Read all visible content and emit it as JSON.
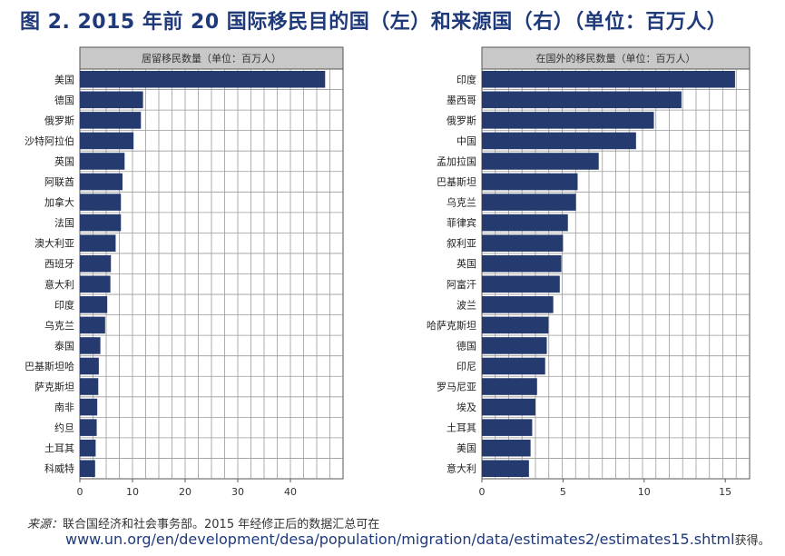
{
  "title": "图 2. 2015 年前 20 国际移民目的国（左）和来源国（右）（单位：百万人）",
  "chart_data": [
    {
      "type": "bar",
      "orientation": "horizontal",
      "title": "居留移民数量（单位：百万人）",
      "categories": [
        "美国",
        "德国",
        "俄罗斯",
        "沙特阿拉伯",
        "英国",
        "阿联酋",
        "加拿大",
        "法国",
        "澳大利亚",
        "西班牙",
        "意大利",
        "印度",
        "乌克兰",
        "泰国",
        "巴基斯坦哈",
        "萨克斯坦",
        "南非",
        "约旦",
        "土耳其",
        "科威特"
      ],
      "values": [
        46.6,
        12.0,
        11.6,
        10.2,
        8.5,
        8.1,
        7.8,
        7.8,
        6.8,
        5.9,
        5.8,
        5.2,
        4.8,
        3.9,
        3.6,
        3.5,
        3.3,
        3.2,
        3.0,
        2.9
      ],
      "xlim": [
        0,
        50
      ],
      "xticks": [
        0,
        10,
        20,
        30,
        40
      ],
      "grid": true,
      "bar_color": "#253a6e"
    },
    {
      "type": "bar",
      "orientation": "horizontal",
      "title": "在国外的移民数量（单位：百万人）",
      "categories": [
        "印度",
        "墨西哥",
        "俄罗斯",
        "中国",
        "孟加拉国",
        "巴基斯坦",
        "乌克兰",
        "菲律宾",
        "叙利亚",
        "英国",
        "阿富汗",
        "波兰",
        "哈萨克斯坦",
        "德国",
        "印尼",
        "罗马尼亚",
        "埃及",
        "土耳其",
        "美国",
        "意大利"
      ],
      "values": [
        15.6,
        12.3,
        10.6,
        9.5,
        7.2,
        5.9,
        5.8,
        5.3,
        5.0,
        4.9,
        4.8,
        4.4,
        4.1,
        4.0,
        3.9,
        3.4,
        3.3,
        3.1,
        3.0,
        2.9
      ],
      "xlim": [
        0,
        16.5
      ],
      "xticks": [
        0,
        5,
        10,
        15
      ],
      "grid": true,
      "bar_color": "#253a6e"
    }
  ],
  "source": {
    "label": "来源：",
    "text": "联合国经济和社会事务部。2015 年经修正后的数据汇总可在",
    "url": "www.un.org/en/development/desa/population/migration/data/estimates2/estimates15.shtml",
    "url_suffix": "获得。"
  }
}
